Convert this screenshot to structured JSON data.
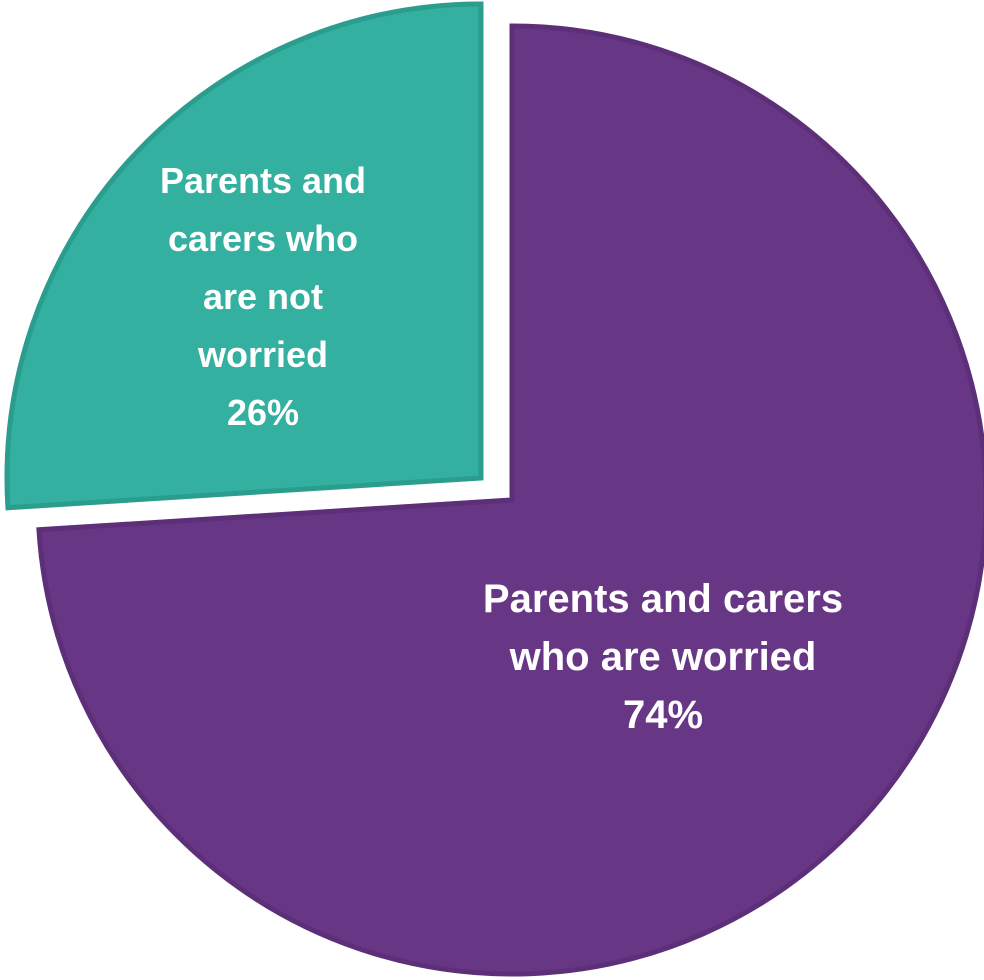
{
  "chart_data": {
    "type": "pie",
    "exploded": true,
    "slices": [
      {
        "label_lines": [
          "Parents and carers",
          "who are worried"
        ],
        "value": 74,
        "value_label": "74%",
        "color": "#673785",
        "border_color": "#5c2f78"
      },
      {
        "label_lines": [
          "Parents and",
          "carers who",
          "are not",
          "worried"
        ],
        "value": 26,
        "value_label": "26%",
        "color": "#33b0a0",
        "border_color": "#2a9d8e"
      }
    ]
  }
}
